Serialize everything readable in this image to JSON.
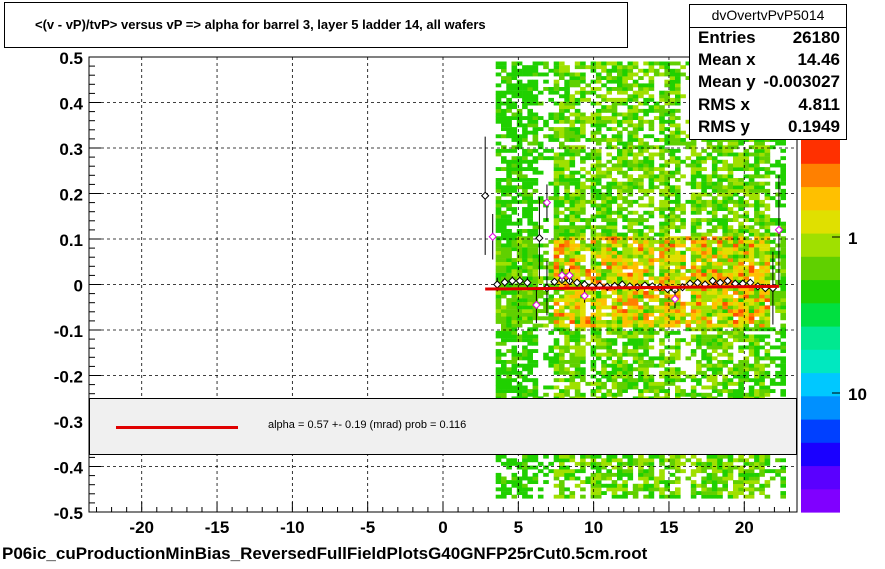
{
  "title": "<(v - vP)/tvP>  versus   vP => alpha for barrel 3, layer 5 ladder 14, all wafers",
  "stats": {
    "name": "dvOvertvPvP5014",
    "rows": [
      {
        "label": "Entries",
        "value": "26180"
      },
      {
        "label": "Mean x",
        "value": "14.46"
      },
      {
        "label": "Mean y",
        "value": "-0.003027"
      },
      {
        "label": "RMS x",
        "value": "4.811"
      },
      {
        "label": "RMS y",
        "value": "0.1949"
      }
    ]
  },
  "fit": {
    "text": "alpha =    0.57 +-  0.19 (mrad) prob = 0.116",
    "line_color": "#e00000"
  },
  "footer": "P06ic_cuProductionMinBias_ReversedFullFieldPlotsG40GNFP25rCut0.5cm.root",
  "colors": {
    "fit_line": "#e00000",
    "profile_black": "#000000",
    "profile_magenta": "#e000e0",
    "grid": "#000000"
  },
  "chart_data": {
    "type": "heatmap",
    "xlim": [
      -23.5,
      23.5
    ],
    "ylim": [
      -0.5,
      0.5
    ],
    "x_ticks": [
      "-20",
      "-15",
      "-10",
      "-5",
      "0",
      "5",
      "10",
      "15",
      "20"
    ],
    "x_tick_values": [
      -20,
      -15,
      -10,
      -5,
      0,
      5,
      10,
      15,
      20
    ],
    "y_ticks": [
      "0.5",
      "0.4",
      "0.3",
      "0.2",
      "0.1",
      "0",
      "-0.1",
      "-0.2",
      "-0.3",
      "-0.4",
      "-0.5"
    ],
    "y_tick_values": [
      0.5,
      0.4,
      0.3,
      0.2,
      0.1,
      0,
      -0.1,
      -0.2,
      -0.3,
      -0.4,
      -0.5
    ],
    "grid": true,
    "occupied_x_range": [
      3.5,
      22.5
    ],
    "occupied_y_range": [
      -0.47,
      0.49
    ],
    "dense_core_y_range": [
      -0.05,
      0.05
    ],
    "sparse_columns_x": [
      [
        6.2,
        7.2
      ],
      [
        9.2,
        9.6
      ],
      [
        13.8,
        14.2
      ],
      [
        15.7,
        16.2
      ],
      [
        21.6,
        22.4
      ]
    ],
    "colorbar": {
      "scale": "log",
      "labels": [
        {
          "text": "1",
          "value": 1
        },
        {
          "text": "10",
          "value": 10
        }
      ],
      "colors": [
        "#8000ff",
        "#5a00ff",
        "#1a00ff",
        "#0040ff",
        "#0090ff",
        "#00c8ff",
        "#00e8c0",
        "#00e890",
        "#00e040",
        "#20d000",
        "#60d000",
        "#a0e000",
        "#e0e000",
        "#ffc000",
        "#ff8000",
        "#ff3000"
      ]
    },
    "fit_line": {
      "x": [
        2.8,
        22.3
      ],
      "y": [
        -0.01,
        -0.004
      ]
    },
    "profile_black": {
      "x": [
        2.8,
        3.6,
        4.1,
        4.6,
        5.1,
        5.6,
        6.4,
        6.9,
        7.4,
        7.9,
        8.4,
        8.9,
        9.4,
        9.9,
        10.4,
        10.9,
        11.4,
        11.9,
        12.4,
        12.9,
        13.4,
        13.9,
        14.4,
        14.9,
        15.4,
        15.9,
        16.4,
        16.9,
        17.4,
        17.9,
        18.4,
        18.9,
        19.4,
        19.9,
        20.4,
        20.9,
        21.4,
        21.9
      ],
      "y": [
        0.195,
        0.0,
        0.005,
        0.008,
        0.008,
        0.004,
        0.102,
        -0.008,
        0.006,
        0.01,
        0.008,
        0.004,
        0.0,
        -0.004,
        -0.003,
        -0.005,
        -0.003,
        0.0,
        -0.004,
        -0.006,
        -0.002,
        -0.004,
        -0.006,
        -0.01,
        -0.012,
        -0.006,
        0.002,
        0.004,
        0.0,
        0.008,
        0.004,
        0.008,
        0.002,
        0.002,
        0.004,
        -0.004,
        -0.008,
        -0.008
      ],
      "err": [
        0.13,
        0.015,
        0.01,
        0.01,
        0.01,
        0.012,
        0.09,
        0.06,
        0.008,
        0.008,
        0.008,
        0.008,
        0.008,
        0.006,
        0.006,
        0.006,
        0.006,
        0.006,
        0.006,
        0.006,
        0.006,
        0.006,
        0.006,
        0.006,
        0.006,
        0.006,
        0.006,
        0.006,
        0.006,
        0.006,
        0.006,
        0.006,
        0.006,
        0.006,
        0.006,
        0.006,
        0.008,
        0.08
      ]
    },
    "profile_magenta": {
      "x": [
        3.3,
        6.2,
        6.9,
        7.9,
        8.4,
        9.4,
        15.4,
        22.3
      ],
      "y": [
        0.105,
        -0.045,
        0.18,
        0.02,
        0.02,
        -0.025,
        -0.032,
        0.12
      ],
      "err": [
        0.05,
        0.04,
        0.04,
        0.015,
        0.015,
        0.015,
        0.02,
        0.12
      ]
    }
  }
}
